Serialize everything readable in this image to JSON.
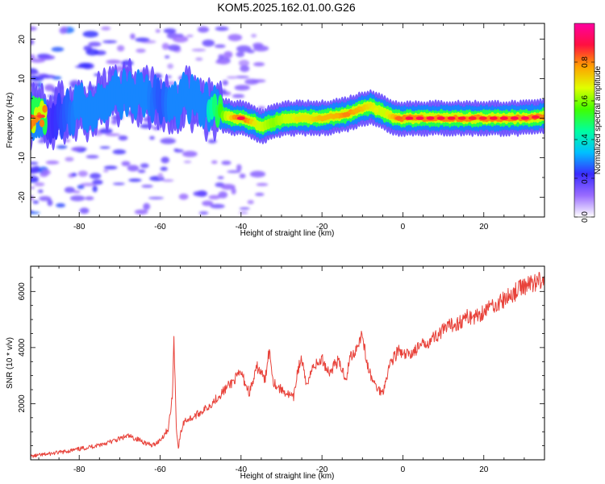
{
  "title": "KOM5.2025.162.01.00.G26",
  "chart_data": [
    {
      "type": "heatmap",
      "xlabel": "Height of straight line (km)",
      "ylabel": "Frequency (Hz)",
      "xlim": [
        -92,
        35
      ],
      "ylim": [
        -25,
        24
      ],
      "x_ticks": [
        -80,
        -60,
        -40,
        -20,
        0,
        20
      ],
      "y_ticks": [
        -20,
        -10,
        0,
        10,
        20
      ],
      "ridge": {
        "x": [
          -88,
          -84,
          -80,
          -76,
          -72,
          -68,
          -64,
          -60,
          -57,
          -54,
          -51,
          -48,
          -45,
          -42,
          -40,
          -37,
          -35,
          -32,
          -29,
          -26,
          -23,
          -20,
          -17,
          -14,
          -11,
          -8,
          -5,
          -2,
          0,
          5,
          10,
          15,
          20,
          25,
          30,
          35
        ],
        "y": [
          0,
          1,
          2,
          3,
          6,
          7,
          6,
          4,
          3,
          5,
          4,
          2,
          1,
          0,
          0,
          -1,
          -2,
          -1,
          0,
          0,
          0,
          0,
          0.5,
          1,
          2,
          3,
          1.5,
          0,
          0,
          0,
          0,
          0,
          0,
          0,
          0,
          0.5
        ],
        "amplitude": [
          0.2,
          0.25,
          0.3,
          0.3,
          0.35,
          0.3,
          0.3,
          0.25,
          0.3,
          0.35,
          0.35,
          0.4,
          0.55,
          0.75,
          0.9,
          0.7,
          0.65,
          0.6,
          0.65,
          0.7,
          0.7,
          0.75,
          0.75,
          0.8,
          0.75,
          0.7,
          0.65,
          0.75,
          0.9,
          0.92,
          0.9,
          0.88,
          0.88,
          0.9,
          0.92,
          0.85
        ]
      },
      "colorbar": {
        "label": "Normalized spectral amplitude",
        "range": [
          0,
          1
        ],
        "ticks": [
          0.0,
          0.2,
          0.4,
          0.6,
          0.8
        ],
        "tick_labels": [
          "0.0",
          "0.2",
          "0.4",
          "0.6",
          "0.8"
        ],
        "colors": [
          "#ffffff",
          "#9a6cff",
          "#3a2cff",
          "#00c0ff",
          "#00ffa0",
          "#40ff00",
          "#e0ff00",
          "#ffa000",
          "#ff1040",
          "#ff00a0"
        ]
      }
    },
    {
      "type": "line",
      "xlabel": "Height of straight line (km)",
      "ylabel": "SNR (10 * v/v)",
      "xlim": [
        -92,
        35
      ],
      "ylim": [
        0,
        6900
      ],
      "x_ticks": [
        -80,
        -60,
        -40,
        -20,
        0,
        20
      ],
      "y_ticks": [
        2000,
        4000,
        6000
      ],
      "line_color": "#e8423a",
      "series": [
        {
          "x": [
            -92,
            -88,
            -84,
            -80,
            -76,
            -72,
            -70,
            -68,
            -65,
            -62,
            -60,
            -58,
            -57,
            -56.6,
            -56.3,
            -56,
            -55.5,
            -55,
            -54,
            -52,
            -50,
            -48,
            -46,
            -44,
            -42,
            -40,
            -38,
            -37,
            -36,
            -35,
            -34,
            -33.5,
            -33,
            -32,
            -31,
            -30,
            -29,
            -28,
            -27,
            -26,
            -25,
            -24,
            -23,
            -22,
            -21,
            -20,
            -19,
            -18,
            -17,
            -16,
            -15,
            -14,
            -13,
            -12,
            -11,
            -10,
            -9,
            -8,
            -7,
            -6,
            -5,
            -4,
            -3,
            -2,
            -1,
            0,
            2,
            4,
            6,
            8,
            10,
            12,
            14,
            16,
            18,
            20,
            22,
            24,
            26,
            28,
            30,
            32,
            35
          ],
          "y": [
            120,
            200,
            280,
            380,
            500,
            650,
            750,
            850,
            700,
            500,
            700,
            1100,
            2200,
            4300,
            2800,
            1200,
            400,
            900,
            1400,
            1500,
            1700,
            1900,
            2200,
            2500,
            2800,
            3100,
            2400,
            2800,
            3300,
            3100,
            2800,
            3600,
            3900,
            2800,
            2600,
            2500,
            2400,
            2300,
            2200,
            3200,
            3600,
            2700,
            3000,
            3400,
            3400,
            3600,
            3300,
            3100,
            3400,
            3500,
            3200,
            2900,
            3700,
            3800,
            4200,
            4500,
            3500,
            3000,
            2700,
            2500,
            2400,
            3000,
            3500,
            3700,
            3900,
            3700,
            3800,
            4000,
            4200,
            4400,
            4600,
            4800,
            4900,
            5100,
            5100,
            5300,
            5500,
            5600,
            5800,
            6000,
            6200,
            6300,
            6500
          ]
        }
      ]
    }
  ]
}
